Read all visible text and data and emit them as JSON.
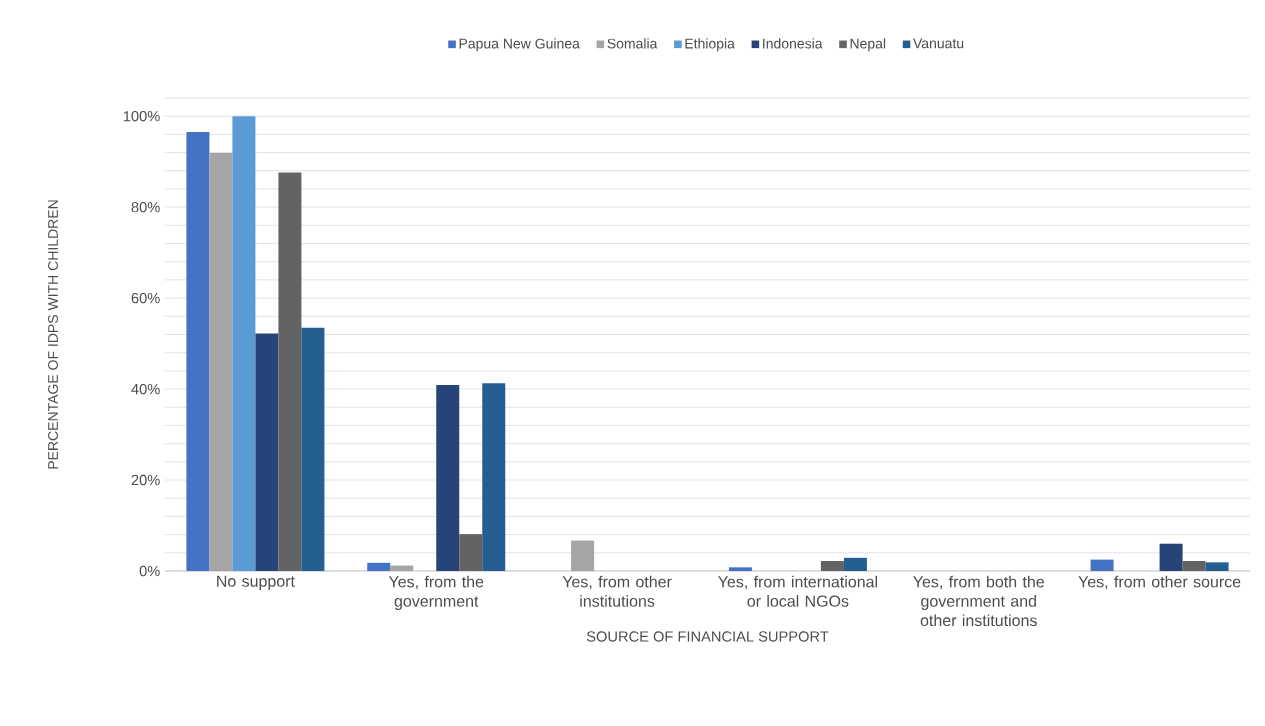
{
  "chart_data": {
    "type": "bar",
    "xlabel": "SOURCE OF FINANCIAL SUPPORT",
    "ylabel": "PERCENTAGE OF IDPS WITH CHILDREN",
    "categories": [
      "No support",
      "Yes, from the government",
      "Yes, from other institutions",
      "Yes, from international or local NGOs",
      "Yes, from both the government and other institutions",
      "Yes, from other source"
    ],
    "series": [
      {
        "name": "Papua New Guinea",
        "color": "#4472c4",
        "values": [
          96.5,
          1.8,
          0,
          0.8,
          0,
          2.5
        ]
      },
      {
        "name": "Somalia",
        "color": "#a5a5a5",
        "values": [
          91.9,
          1.2,
          6.7,
          0,
          0,
          0
        ]
      },
      {
        "name": "Ethiopia",
        "color": "#5b9bd5",
        "values": [
          100,
          0,
          0,
          0,
          0,
          0
        ]
      },
      {
        "name": "Indonesia",
        "color": "#264478",
        "values": [
          52.2,
          40.9,
          0,
          0,
          0,
          6.0
        ]
      },
      {
        "name": "Nepal",
        "color": "#636363",
        "values": [
          87.6,
          8.1,
          0,
          2.2,
          0,
          2.2
        ]
      },
      {
        "name": "Vanuatu",
        "color": "#255e91",
        "values": [
          53.5,
          41.3,
          0,
          2.9,
          0,
          1.9
        ]
      }
    ],
    "ylim": [
      0,
      104
    ],
    "yticks": [
      {
        "value": 0,
        "label": "0%"
      },
      {
        "value": 4,
        "label": null
      },
      {
        "value": 8,
        "label": null
      },
      {
        "value": 12,
        "label": null
      },
      {
        "value": 16,
        "label": null
      },
      {
        "value": 20,
        "label": "20%"
      },
      {
        "value": 24,
        "label": null
      },
      {
        "value": 28,
        "label": null
      },
      {
        "value": 32,
        "label": null
      },
      {
        "value": 36,
        "label": null
      },
      {
        "value": 40,
        "label": "40%"
      },
      {
        "value": 44,
        "label": null
      },
      {
        "value": 48,
        "label": null
      },
      {
        "value": 52,
        "label": null
      },
      {
        "value": 56,
        "label": null
      },
      {
        "value": 60,
        "label": "60%"
      },
      {
        "value": 64,
        "label": null
      },
      {
        "value": 68,
        "label": null
      },
      {
        "value": 72,
        "label": null
      },
      {
        "value": 76,
        "label": null
      },
      {
        "value": 80,
        "label": "80%"
      },
      {
        "value": 84,
        "label": null
      },
      {
        "value": 88,
        "label": null
      },
      {
        "value": 92,
        "label": null
      },
      {
        "value": 96,
        "label": null
      },
      {
        "value": 100,
        "label": "100%"
      },
      {
        "value": 104,
        "label": null
      }
    ],
    "grid": "y",
    "legend": "top"
  }
}
